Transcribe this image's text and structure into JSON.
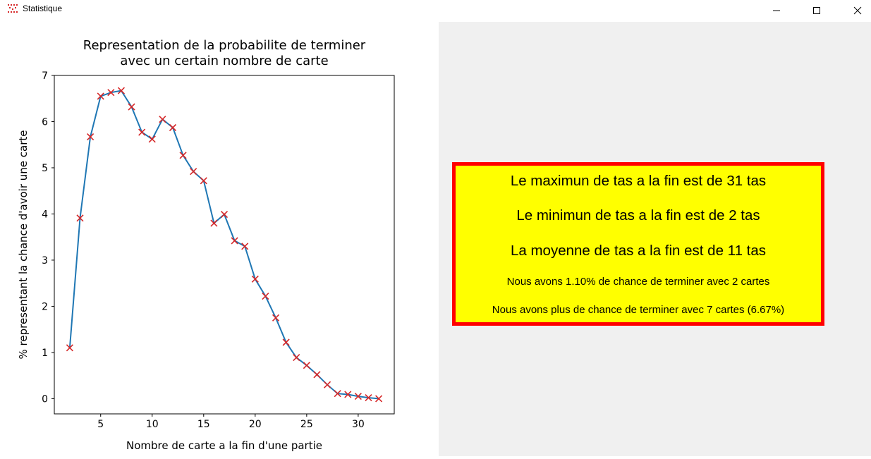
{
  "window": {
    "title": "Statistique",
    "app_icon": "red-dotted-app-icon",
    "controls": [
      "minimize-icon",
      "maximize-icon",
      "close-icon"
    ]
  },
  "colors": {
    "line": "#1f77b4",
    "marker": "#d62728",
    "box_background": "#ffff00",
    "box_border": "#ff0000",
    "panel_background": "#f0f0f0"
  },
  "chart_data": {
    "type": "line",
    "title": "Representation de la probabilite de terminer\navec un certain nombre de carte",
    "xlabel": "Nombre de carte a la fin d'une partie",
    "ylabel": "% representant la chance d'avoir une carte",
    "xlim": [
      0.5,
      33.5
    ],
    "ylim": [
      -0.33,
      7
    ],
    "xticks": [
      5,
      10,
      15,
      20,
      25,
      30
    ],
    "yticks": [
      0,
      1,
      2,
      3,
      4,
      5,
      6,
      7
    ],
    "grid": false,
    "marker": "x",
    "series": [
      {
        "x": [
          2,
          3,
          4,
          5,
          6,
          7,
          8,
          9,
          10,
          11,
          12,
          13,
          14,
          15,
          16,
          17,
          18,
          19,
          20,
          21,
          22,
          23,
          24,
          25,
          26,
          27,
          28,
          29,
          30,
          31,
          32
        ],
        "values": [
          1.1,
          3.91,
          5.67,
          6.55,
          6.63,
          6.67,
          6.32,
          5.77,
          5.62,
          6.05,
          5.87,
          5.27,
          4.92,
          4.72,
          3.8,
          3.99,
          3.42,
          3.3,
          2.59,
          2.22,
          1.75,
          1.22,
          0.89,
          0.72,
          0.52,
          0.3,
          0.11,
          0.09,
          0.05,
          0.02,
          0.0
        ]
      }
    ]
  },
  "stats": {
    "max_line": "Le maximun de tas a la fin est de 31 tas",
    "min_line": "Le minimun de tas a la fin est de 2 tas",
    "mean_line": "La moyenne de tas a la fin est de 11 tas",
    "chance_line": "Nous avons 1.10% de chance de terminer avec 2 cartes",
    "best_line": "Nous avons plus de chance de terminer avec 7 cartes (6.67%)"
  }
}
